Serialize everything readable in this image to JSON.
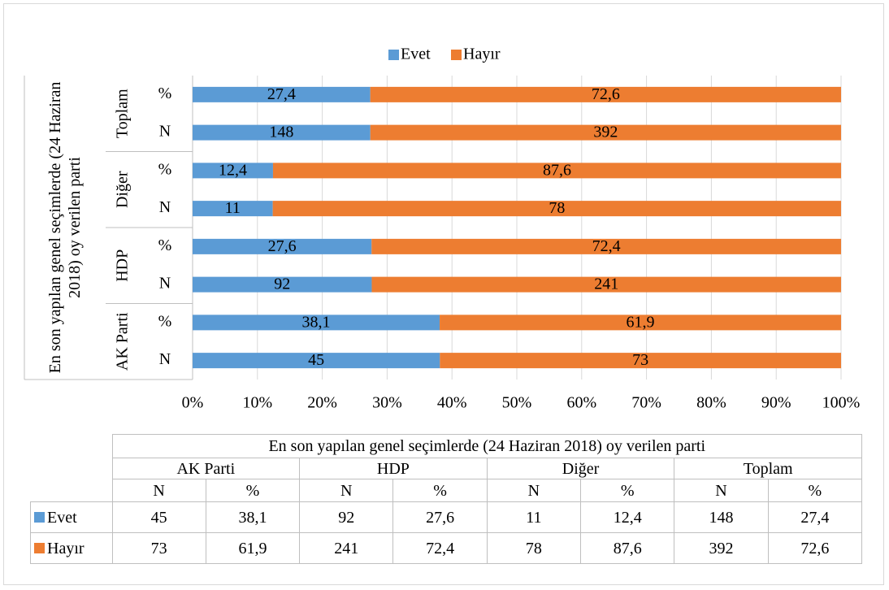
{
  "chart_data": {
    "type": "bar",
    "orientation": "horizontal",
    "stacked": "percent",
    "axis_title": "En son yapılan genel seçimlerde (24 Haziran 2018) oy verilen parti",
    "groups": [
      "AK Parti",
      "HDP",
      "Diğer",
      "Toplam"
    ],
    "categories": [
      "N",
      "%",
      "N",
      "%",
      "N",
      "%",
      "N",
      "%"
    ],
    "series": [
      {
        "name": "Evet",
        "color": "#5b9bd5",
        "values": [
          45,
          38.1,
          92,
          27.6,
          11,
          12.4,
          148,
          27.4
        ],
        "value_labels": [
          "45",
          "38,1",
          "92",
          "27,6",
          "11",
          "12,4",
          "148",
          "27,4"
        ]
      },
      {
        "name": "Hayır",
        "color": "#ed7d31",
        "values": [
          73,
          61.9,
          241,
          72.4,
          78,
          87.6,
          392,
          72.6
        ],
        "value_labels": [
          "73",
          "61,9",
          "241",
          "72,4",
          "78",
          "87,6",
          "392",
          "72,6"
        ]
      }
    ],
    "xlim": [
      0,
      100
    ],
    "xticks": [
      {
        "value": 0,
        "label": "0%"
      },
      {
        "value": 10,
        "label": "10%"
      },
      {
        "value": 20,
        "label": "20%"
      },
      {
        "value": 30,
        "label": "30%"
      },
      {
        "value": 40,
        "label": "40%"
      },
      {
        "value": 50,
        "label": "50%"
      },
      {
        "value": 60,
        "label": "60%"
      },
      {
        "value": 70,
        "label": "70%"
      },
      {
        "value": 80,
        "label": "80%"
      },
      {
        "value": 90,
        "label": "90%"
      },
      {
        "value": 100,
        "label": "100%"
      }
    ],
    "grid": true,
    "legend": "top",
    "data_table": true
  }
}
